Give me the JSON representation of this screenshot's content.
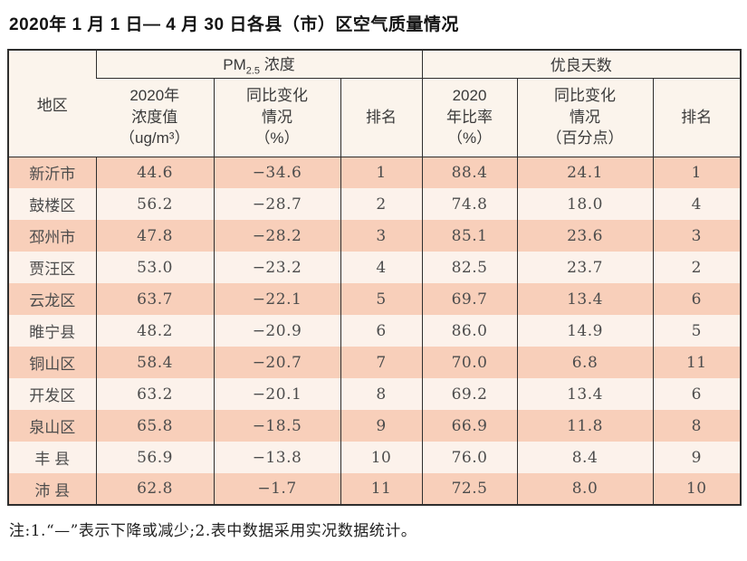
{
  "title": "2020年 1 月 1 日— 4 月 30 日各县（市）区空气质量情况",
  "table": {
    "corner_header": "地区",
    "pm_group": {
      "prefix": "PM",
      "sub": "2.5",
      "suffix": " 浓度"
    },
    "good_group": "优良天数",
    "sub_headers": {
      "pm_value": "2020年\n浓度值\n（ug/m³）",
      "pm_change": "同比变化\n情况\n（%）",
      "pm_rank": "排名",
      "good_ratio": "2020\n年比率\n（%）",
      "good_change": "同比变化\n情况\n（百分点）",
      "good_rank": "排名"
    },
    "rows": [
      {
        "region": "新沂市",
        "pm_value": "44.6",
        "pm_change": "−34.6",
        "pm_rank": "1",
        "good_ratio": "88.4",
        "good_change": "24.1",
        "good_rank": "1"
      },
      {
        "region": "鼓楼区",
        "pm_value": "56.2",
        "pm_change": "−28.7",
        "pm_rank": "2",
        "good_ratio": "74.8",
        "good_change": "18.0",
        "good_rank": "4"
      },
      {
        "region": "邳州市",
        "pm_value": "47.8",
        "pm_change": "−28.2",
        "pm_rank": "3",
        "good_ratio": "85.1",
        "good_change": "23.6",
        "good_rank": "3"
      },
      {
        "region": "贾汪区",
        "pm_value": "53.0",
        "pm_change": "−23.2",
        "pm_rank": "4",
        "good_ratio": "82.5",
        "good_change": "23.7",
        "good_rank": "2"
      },
      {
        "region": "云龙区",
        "pm_value": "63.7",
        "pm_change": "−22.1",
        "pm_rank": "5",
        "good_ratio": "69.7",
        "good_change": "13.4",
        "good_rank": "6"
      },
      {
        "region": "睢宁县",
        "pm_value": "48.2",
        "pm_change": "−20.9",
        "pm_rank": "6",
        "good_ratio": "86.0",
        "good_change": "14.9",
        "good_rank": "5"
      },
      {
        "region": "铜山区",
        "pm_value": "58.4",
        "pm_change": "−20.7",
        "pm_rank": "7",
        "good_ratio": "70.0",
        "good_change": "6.8",
        "good_rank": "11"
      },
      {
        "region": "开发区",
        "pm_value": "63.2",
        "pm_change": "−20.1",
        "pm_rank": "8",
        "good_ratio": "69.2",
        "good_change": "13.4",
        "good_rank": "6"
      },
      {
        "region": "泉山区",
        "pm_value": "65.8",
        "pm_change": "−18.5",
        "pm_rank": "9",
        "good_ratio": "66.9",
        "good_change": "11.8",
        "good_rank": "8"
      },
      {
        "region": "丰 县",
        "pm_value": "56.9",
        "pm_change": "−13.8",
        "pm_rank": "10",
        "good_ratio": "76.0",
        "good_change": "8.4",
        "good_rank": "9"
      },
      {
        "region": "沛 县",
        "pm_value": "62.8",
        "pm_change": "−1.7",
        "pm_rank": "11",
        "good_ratio": "72.5",
        "good_change": "8.0",
        "good_rank": "10"
      }
    ]
  },
  "note": "注:1.“—”表示下降或减少;2.表中数据采用实况数据统计。",
  "colors": {
    "row_odd": "#f8cfba",
    "row_even": "#fcf2eb",
    "header_bg": "#fbf4ec",
    "border": "#2e2e2e",
    "text": "#4c4c4c"
  },
  "chart_data": {
    "type": "table",
    "title": "2020年 1 月 1 日— 4 月 30 日各县（市）区空气质量情况",
    "column_groups": [
      "地区",
      "PM2.5 浓度",
      "优良天数"
    ],
    "columns": [
      "地区",
      "PM2.5浓度 2020年浓度值（ug/m³）",
      "PM2.5浓度 同比变化情况（%）",
      "PM2.5浓度 排名",
      "优良天数 2020年比率（%）",
      "优良天数 同比变化情况（百分点）",
      "优良天数 排名"
    ],
    "rows": [
      [
        "新沂市",
        44.6,
        -34.6,
        1,
        88.4,
        24.1,
        1
      ],
      [
        "鼓楼区",
        56.2,
        -28.7,
        2,
        74.8,
        18.0,
        4
      ],
      [
        "邳州市",
        47.8,
        -28.2,
        3,
        85.1,
        23.6,
        3
      ],
      [
        "贾汪区",
        53.0,
        -23.2,
        4,
        82.5,
        23.7,
        2
      ],
      [
        "云龙区",
        63.7,
        -22.1,
        5,
        69.7,
        13.4,
        6
      ],
      [
        "睢宁县",
        48.2,
        -20.9,
        6,
        86.0,
        14.9,
        5
      ],
      [
        "铜山区",
        58.4,
        -20.7,
        7,
        70.0,
        6.8,
        11
      ],
      [
        "开发区",
        63.2,
        -20.1,
        8,
        69.2,
        13.4,
        6
      ],
      [
        "泉山区",
        65.8,
        -18.5,
        9,
        66.9,
        11.8,
        8
      ],
      [
        "丰县",
        56.9,
        -13.8,
        10,
        76.0,
        8.4,
        9
      ],
      [
        "沛县",
        62.8,
        -1.7,
        11,
        72.5,
        8.0,
        10
      ]
    ],
    "footnote": "注:1.“—”表示下降或减少;2.表中数据采用实况数据统计。"
  }
}
